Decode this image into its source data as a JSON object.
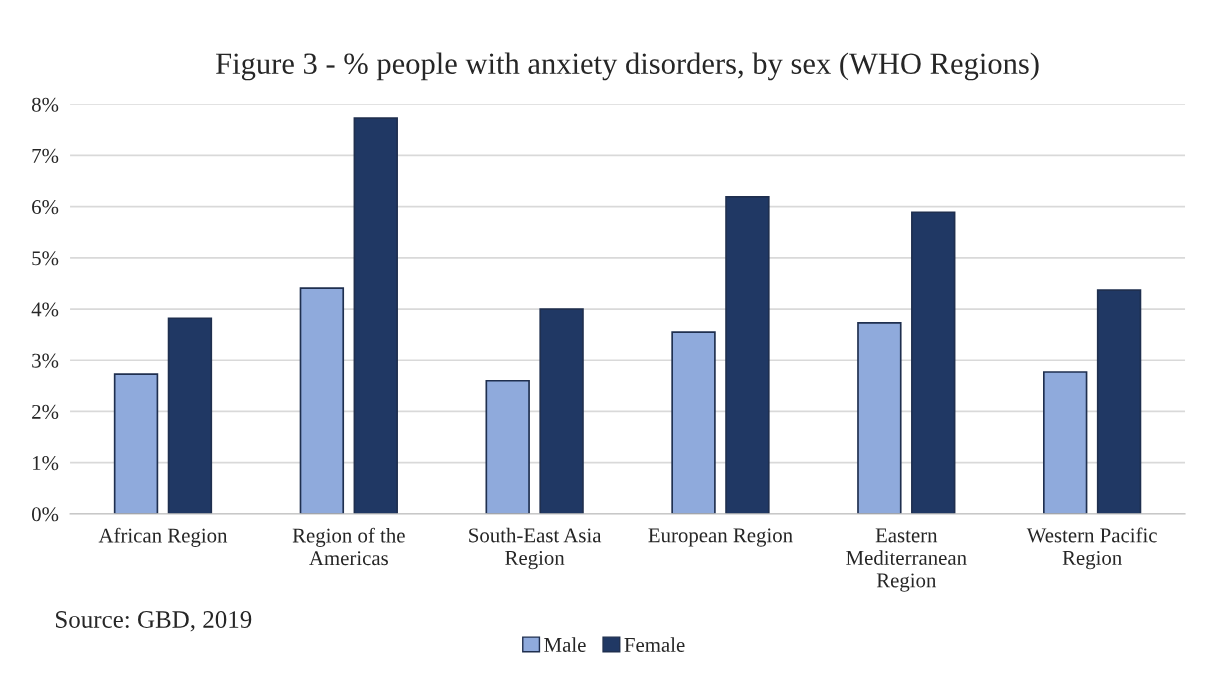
{
  "chart_data": {
    "type": "bar",
    "title": "Figure 3 - % people with anxiety disorders, by sex (WHO Regions)",
    "categories": [
      "African Region",
      "Region of the\nAmericas",
      "South-East Asia\nRegion",
      "European Region",
      "Eastern\nMediterranean\nRegion",
      "Western Pacific\nRegion"
    ],
    "series": [
      {
        "name": "Male",
        "color": "#8faadc",
        "values": [
          2.73,
          4.41,
          2.6,
          3.55,
          3.73,
          2.77
        ]
      },
      {
        "name": "Female",
        "color": "#203864",
        "values": [
          3.82,
          7.73,
          4.0,
          6.19,
          5.89,
          4.37
        ]
      }
    ],
    "ylim": [
      0,
      8
    ],
    "yticks": [
      {
        "value": 0,
        "label": "0%"
      },
      {
        "value": 1,
        "label": "1%"
      },
      {
        "value": 2,
        "label": "2%"
      },
      {
        "value": 3,
        "label": "3%"
      },
      {
        "value": 4,
        "label": "4%"
      },
      {
        "value": 5,
        "label": "5%"
      },
      {
        "value": 6,
        "label": "6%"
      },
      {
        "value": 7,
        "label": "7%"
      },
      {
        "value": 8,
        "label": "8%"
      }
    ],
    "grid": "y",
    "legend": "bottom",
    "annotations": [
      "Source: GBD, 2019"
    ]
  }
}
